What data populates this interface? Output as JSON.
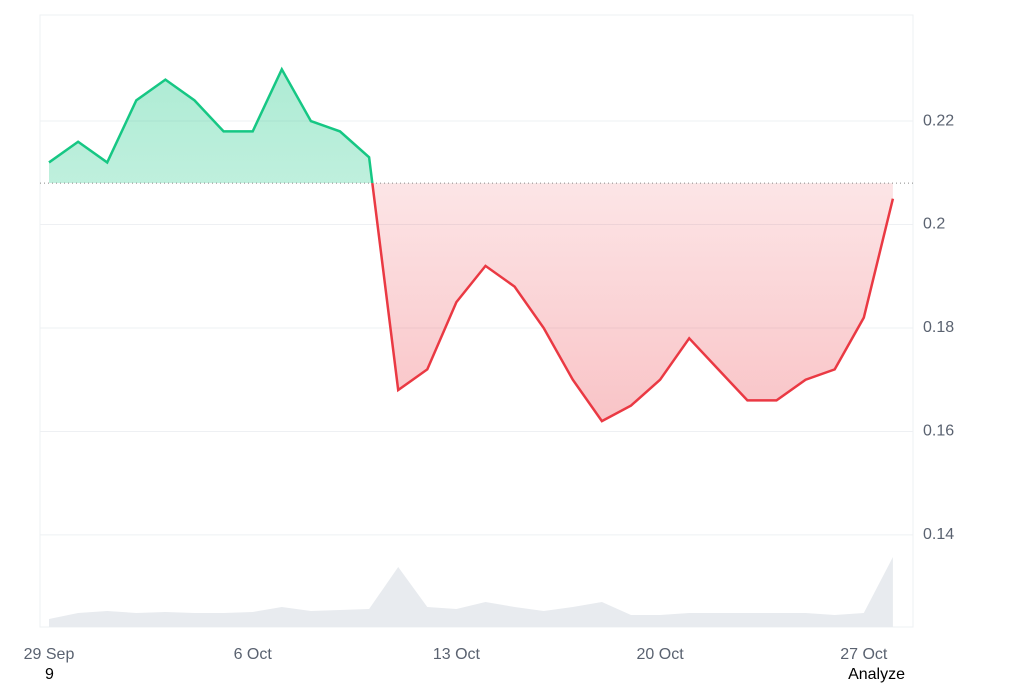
{
  "chart_data": {
    "type": "line",
    "x": [
      "29 Sep",
      "30 Sep",
      "1 Oct",
      "2 Oct",
      "3 Oct",
      "4 Oct",
      "5 Oct",
      "6 Oct",
      "7 Oct",
      "8 Oct",
      "9 Oct",
      "10 Oct",
      "11 Oct",
      "12 Oct",
      "13 Oct",
      "14 Oct",
      "15 Oct",
      "16 Oct",
      "17 Oct",
      "18 Oct",
      "19 Oct",
      "20 Oct",
      "21 Oct",
      "22 Oct",
      "23 Oct",
      "24 Oct",
      "25 Oct",
      "26 Oct",
      "27 Oct",
      "28 Oct"
    ],
    "series": [
      {
        "name": "price",
        "values": [
          0.212,
          0.216,
          0.212,
          0.224,
          0.228,
          0.224,
          0.218,
          0.218,
          0.23,
          0.22,
          0.218,
          0.213,
          0.168,
          0.172,
          0.185,
          0.192,
          0.188,
          0.18,
          0.17,
          0.162,
          0.165,
          0.17,
          0.178,
          0.172,
          0.166,
          0.166,
          0.17,
          0.172,
          0.182,
          0.205
        ]
      },
      {
        "name": "volume",
        "color": "#e8ebef",
        "values": [
          8,
          14,
          16,
          14,
          15,
          14,
          14,
          15,
          20,
          16,
          17,
          18,
          60,
          20,
          18,
          25,
          20,
          16,
          20,
          25,
          12,
          12,
          14,
          14,
          14,
          14,
          14,
          12,
          14,
          70
        ]
      }
    ],
    "baseline": 0.208,
    "up_color": "#16c784",
    "down_color": "#ea3943",
    "ylim": [
      0.1222,
      0.2405
    ],
    "yticks": [
      0.14,
      0.16,
      0.18,
      0.2,
      0.22
    ],
    "xticks": [
      "29 Sep",
      "6 Oct",
      "13 Oct",
      "20 Oct",
      "27 Oct"
    ],
    "footer_left": "9",
    "footer_right": "Analyze",
    "grid": true
  }
}
